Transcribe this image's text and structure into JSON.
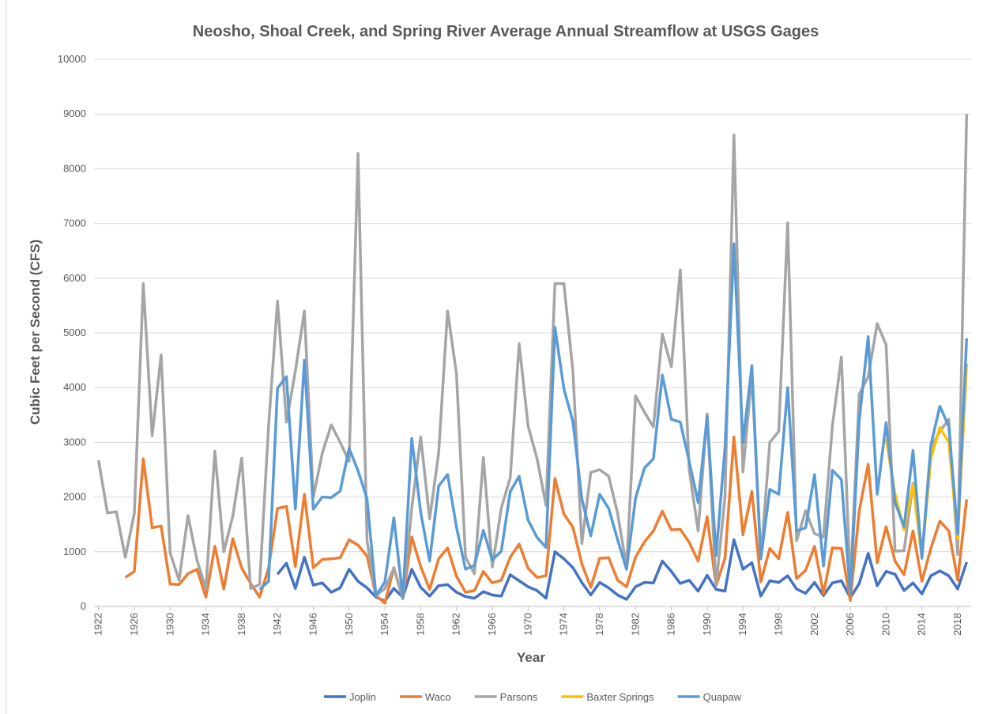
{
  "chart_data": {
    "type": "line",
    "title": "Neosho, Shoal Creek, and Spring River Average Annual Streamflow at USGS Gages",
    "x_label": "Year",
    "y_label": "Cubic Feet per Second (CFS)",
    "x": [
      1922,
      1923,
      1924,
      1925,
      1926,
      1927,
      1928,
      1929,
      1930,
      1931,
      1932,
      1933,
      1934,
      1935,
      1936,
      1937,
      1938,
      1939,
      1940,
      1941,
      1942,
      1943,
      1944,
      1945,
      1946,
      1947,
      1948,
      1949,
      1950,
      1951,
      1952,
      1953,
      1954,
      1955,
      1956,
      1957,
      1958,
      1959,
      1960,
      1961,
      1962,
      1963,
      1964,
      1965,
      1966,
      1967,
      1968,
      1969,
      1970,
      1971,
      1972,
      1973,
      1974,
      1975,
      1976,
      1977,
      1978,
      1979,
      1980,
      1981,
      1982,
      1983,
      1984,
      1985,
      1986,
      1987,
      1988,
      1989,
      1990,
      1991,
      1992,
      1993,
      1994,
      1995,
      1996,
      1997,
      1998,
      1999,
      2000,
      2001,
      2002,
      2003,
      2004,
      2005,
      2006,
      2007,
      2008,
      2009,
      2010,
      2011,
      2012,
      2013,
      2014,
      2015,
      2016,
      2017,
      2018,
      2019
    ],
    "xlim": [
      1921.5,
      2019.5
    ],
    "xticks": [
      1922,
      1926,
      1930,
      1934,
      1938,
      1942,
      1946,
      1950,
      1954,
      1958,
      1962,
      1966,
      1970,
      1974,
      1978,
      1982,
      1986,
      1990,
      1994,
      1998,
      2002,
      2006,
      2010,
      2014,
      2018
    ],
    "ylim": [
      0,
      10000
    ],
    "yticks": [
      0,
      1000,
      2000,
      3000,
      4000,
      5000,
      6000,
      7000,
      8000,
      9000,
      10000
    ],
    "grid": true,
    "legend": "bottom",
    "series": [
      {
        "name": "Joplin",
        "color": "#4472c4",
        "values": [
          null,
          null,
          null,
          null,
          null,
          null,
          null,
          null,
          null,
          null,
          null,
          null,
          null,
          null,
          null,
          null,
          null,
          null,
          null,
          null,
          590,
          790,
          330,
          900,
          390,
          430,
          260,
          340,
          680,
          460,
          340,
          170,
          100,
          330,
          170,
          680,
          350,
          190,
          380,
          400,
          260,
          180,
          150,
          270,
          210,
          190,
          580,
          470,
          360,
          290,
          150,
          1000,
          870,
          710,
          440,
          210,
          440,
          340,
          210,
          130,
          360,
          440,
          430,
          830,
          640,
          420,
          480,
          280,
          570,
          310,
          280,
          1220,
          680,
          800,
          190,
          470,
          440,
          560,
          320,
          240,
          440,
          200,
          430,
          470,
          160,
          420,
          970,
          380,
          640,
          590,
          290,
          430,
          230,
          560,
          650,
          560,
          320,
          810
        ]
      },
      {
        "name": "Waco",
        "color": "#ed7d31",
        "values": [
          null,
          null,
          null,
          530,
          640,
          2700,
          1440,
          1470,
          410,
          400,
          600,
          680,
          170,
          1100,
          320,
          1240,
          700,
          420,
          170,
          700,
          1790,
          1830,
          730,
          2050,
          710,
          860,
          870,
          890,
          1220,
          1120,
          920,
          200,
          60,
          710,
          150,
          1270,
          730,
          310,
          870,
          1070,
          550,
          260,
          290,
          640,
          430,
          480,
          900,
          1140,
          700,
          530,
          560,
          2340,
          1690,
          1450,
          780,
          350,
          880,
          890,
          480,
          360,
          900,
          1180,
          1380,
          1740,
          1400,
          1410,
          1170,
          830,
          1640,
          380,
          880,
          3100,
          1310,
          2100,
          450,
          1060,
          870,
          1720,
          510,
          660,
          1100,
          230,
          1070,
          1060,
          110,
          1750,
          2600,
          800,
          1460,
          830,
          580,
          1380,
          460,
          1060,
          1560,
          1380,
          480,
          1960
        ]
      },
      {
        "name": "Parsons",
        "color": "#a5a5a5",
        "values": [
          2670,
          1710,
          1730,
          900,
          1700,
          5900,
          3120,
          4600,
          980,
          480,
          1660,
          850,
          320,
          2840,
          1000,
          1650,
          2710,
          330,
          400,
          3300,
          5580,
          3370,
          4300,
          5400,
          2000,
          2800,
          3320,
          3000,
          2650,
          8280,
          1200,
          200,
          330,
          700,
          140,
          1800,
          3100,
          1600,
          2800,
          5400,
          4250,
          900,
          600,
          2720,
          720,
          1800,
          2350,
          4800,
          3300,
          2700,
          1850,
          5900,
          5900,
          4300,
          1150,
          2450,
          2500,
          2380,
          1700,
          720,
          3850,
          3550,
          3280,
          4980,
          4380,
          6150,
          2500,
          1380,
          3520,
          380,
          2000,
          8620,
          2460,
          4250,
          870,
          3000,
          3200,
          7010,
          1200,
          1750,
          1330,
          1270,
          3300,
          4560,
          400,
          3880,
          4200,
          5170,
          4780,
          1010,
          1020,
          2250,
          900,
          2900,
          3200,
          3420,
          950,
          9000
        ]
      },
      {
        "name": "Baxter Springs",
        "color": "#ffc000",
        "values": [
          null,
          null,
          null,
          null,
          null,
          null,
          null,
          null,
          null,
          null,
          null,
          null,
          null,
          null,
          null,
          null,
          null,
          null,
          null,
          null,
          null,
          null,
          null,
          null,
          null,
          null,
          null,
          null,
          null,
          null,
          null,
          null,
          null,
          null,
          null,
          null,
          null,
          null,
          null,
          null,
          null,
          null,
          null,
          null,
          null,
          null,
          null,
          null,
          null,
          null,
          null,
          null,
          null,
          null,
          null,
          null,
          null,
          null,
          null,
          null,
          null,
          null,
          null,
          null,
          null,
          null,
          null,
          null,
          null,
          null,
          null,
          null,
          null,
          null,
          null,
          null,
          null,
          null,
          null,
          null,
          null,
          null,
          null,
          null,
          null,
          null,
          null,
          null,
          3060,
          2050,
          1400,
          2230,
          900,
          2700,
          3270,
          3000,
          1240,
          4440
        ]
      },
      {
        "name": "Quapaw",
        "color": "#5b9bd5",
        "values": [
          null,
          null,
          null,
          null,
          null,
          null,
          null,
          null,
          null,
          null,
          null,
          null,
          null,
          null,
          null,
          null,
          null,
          null,
          310,
          460,
          3990,
          4200,
          1780,
          4500,
          1780,
          2000,
          1990,
          2110,
          2890,
          2480,
          1970,
          200,
          450,
          1620,
          160,
          3070,
          1720,
          830,
          2200,
          2410,
          1450,
          680,
          750,
          1390,
          850,
          1010,
          2100,
          2380,
          1580,
          1260,
          1080,
          5100,
          3980,
          3380,
          1970,
          1290,
          2050,
          1790,
          1220,
          680,
          1980,
          2530,
          2700,
          4230,
          3420,
          3370,
          2650,
          1900,
          3480,
          930,
          2900,
          6630,
          2990,
          4400,
          870,
          2140,
          2050,
          4000,
          1380,
          1440,
          2410,
          740,
          2490,
          2320,
          230,
          3400,
          4930,
          2050,
          3360,
          1900,
          1460,
          2850,
          880,
          2950,
          3660,
          3290,
          1320,
          4900
        ]
      }
    ]
  }
}
